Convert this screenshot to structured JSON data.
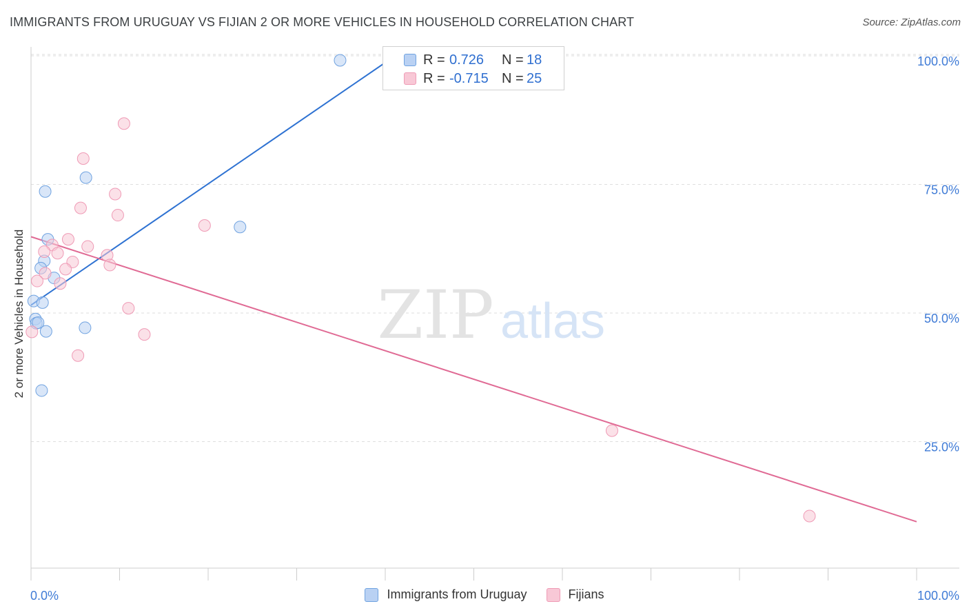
{
  "chart_data": {
    "type": "scatter",
    "title": "IMMIGRANTS FROM URUGUAY VS FIJIAN 2 OR MORE VEHICLES IN HOUSEHOLD CORRELATION CHART",
    "source": "Source: ZipAtlas.com",
    "ylabel": "2 or more Vehicles in Household",
    "xlabel": "",
    "xlim": [
      0,
      100
    ],
    "ylim": [
      0,
      105
    ],
    "x_tick_labels": [
      "0.0%",
      "100.0%"
    ],
    "y_ticks": [
      {
        "value": 100,
        "label": "100.0%"
      },
      {
        "value": 75,
        "label": "75.0%"
      },
      {
        "value": 50,
        "label": "50.0%"
      },
      {
        "value": 25,
        "label": "25.0%"
      }
    ],
    "watermark": {
      "zip": "ZIP",
      "atlas": "atlas"
    },
    "series": [
      {
        "name": "Immigrants from Uruguay",
        "color": "#6fa2e0",
        "fill": "#b9d1f3",
        "line_color": "#2e72d2",
        "R": "0.726",
        "N": "18",
        "trend": {
          "x0": 0.0,
          "y0": 52.6,
          "x1": 40.2,
          "y1": 100.0
        },
        "points": [
          {
            "x": 34.9,
            "y": 100.2
          },
          {
            "x": 6.2,
            "y": 77.4
          },
          {
            "x": 1.6,
            "y": 74.7
          },
          {
            "x": 23.6,
            "y": 67.8
          },
          {
            "x": 1.9,
            "y": 65.4
          },
          {
            "x": 1.5,
            "y": 61.2
          },
          {
            "x": 1.1,
            "y": 59.8
          },
          {
            "x": 2.6,
            "y": 57.9
          },
          {
            "x": 0.3,
            "y": 53.4
          },
          {
            "x": 1.3,
            "y": 53.1
          },
          {
            "x": 0.5,
            "y": 49.9
          },
          {
            "x": 0.6,
            "y": 49.1
          },
          {
            "x": 0.8,
            "y": 49.2
          },
          {
            "x": 1.7,
            "y": 47.5
          },
          {
            "x": 6.1,
            "y": 48.2
          },
          {
            "x": 1.2,
            "y": 36.0
          }
        ]
      },
      {
        "name": "Fijians",
        "color": "#ef9ab5",
        "fill": "#f8c8d6",
        "line_color": "#e06a94",
        "R": "-0.715",
        "N": "25",
        "trend": {
          "x0": 0.0,
          "y0": 65.9,
          "x1": 100.0,
          "y1": 10.5
        },
        "points": [
          {
            "x": 10.5,
            "y": 87.9
          },
          {
            "x": 5.9,
            "y": 81.1
          },
          {
            "x": 9.5,
            "y": 74.2
          },
          {
            "x": 5.6,
            "y": 71.5
          },
          {
            "x": 9.8,
            "y": 70.1
          },
          {
            "x": 19.6,
            "y": 68.1
          },
          {
            "x": 4.2,
            "y": 65.4
          },
          {
            "x": 2.4,
            "y": 64.3
          },
          {
            "x": 6.4,
            "y": 64.0
          },
          {
            "x": 1.5,
            "y": 63.0
          },
          {
            "x": 3.0,
            "y": 62.7
          },
          {
            "x": 8.6,
            "y": 62.3
          },
          {
            "x": 4.7,
            "y": 61.0
          },
          {
            "x": 8.9,
            "y": 60.4
          },
          {
            "x": 3.9,
            "y": 59.6
          },
          {
            "x": 1.6,
            "y": 58.8
          },
          {
            "x": 0.7,
            "y": 57.3
          },
          {
            "x": 3.3,
            "y": 56.8
          },
          {
            "x": 11.0,
            "y": 52.0
          },
          {
            "x": 12.8,
            "y": 46.9
          },
          {
            "x": 0.1,
            "y": 47.4
          },
          {
            "x": 5.3,
            "y": 42.8
          },
          {
            "x": 65.6,
            "y": 28.2
          },
          {
            "x": 87.9,
            "y": 11.6
          }
        ]
      }
    ]
  }
}
